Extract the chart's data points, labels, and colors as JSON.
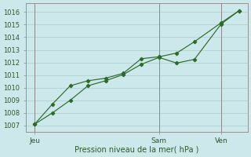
{
  "bg_color": "#cce8ea",
  "grid_color": "#aacccc",
  "line_color": "#2d6b2d",
  "marker_color": "#2d6b2d",
  "xlabel": "Pression niveau de la mer( hPa )",
  "ylim": [
    1006.5,
    1016.7
  ],
  "yticks": [
    1007,
    1008,
    1009,
    1010,
    1011,
    1012,
    1013,
    1014,
    1015,
    1016
  ],
  "xtick_labels": [
    "Jeu",
    "Sam",
    "Ven"
  ],
  "xtick_positions": [
    0,
    14,
    21
  ],
  "vline_x": [
    0,
    14,
    21
  ],
  "xlim": [
    -1,
    24
  ],
  "series1_x": [
    0,
    2,
    4,
    6,
    8,
    10,
    12,
    14,
    16,
    18,
    21,
    23
  ],
  "series1_y": [
    1007.1,
    1008.0,
    1009.0,
    1010.15,
    1010.55,
    1011.05,
    1011.85,
    1012.4,
    1011.95,
    1012.25,
    1015.05,
    1016.1
  ],
  "series2_x": [
    0,
    2,
    4,
    6,
    8,
    10,
    12,
    14,
    16,
    18,
    21,
    23
  ],
  "series2_y": [
    1007.1,
    1008.7,
    1010.15,
    1010.55,
    1010.75,
    1011.15,
    1012.3,
    1012.45,
    1012.75,
    1013.65,
    1015.15,
    1016.1
  ]
}
